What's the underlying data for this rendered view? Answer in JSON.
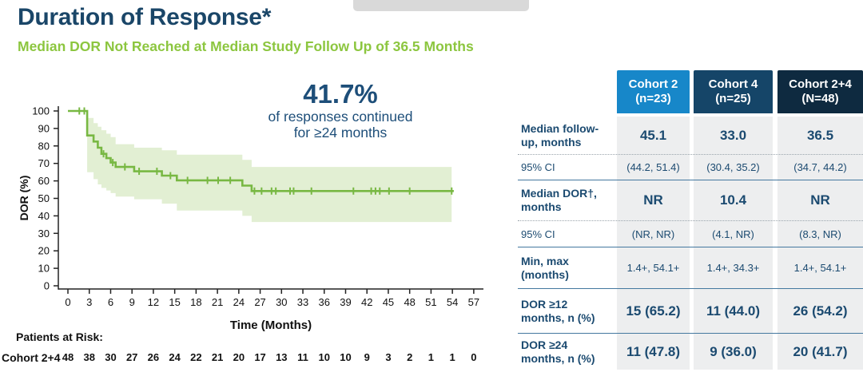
{
  "header": {
    "title": "Duration of Response*",
    "subtitle": "Median DOR Not Reached at Median Study Follow Up of 36.5 Months"
  },
  "colors": {
    "navy_text": "#1b4a70",
    "title_navy": "#1a4668",
    "green_accent": "#8cc63f",
    "curve_green": "#78b843",
    "band_green": "#e2efd3",
    "header_col1_bg": "#1787c9",
    "header_col2_bg": "#154568",
    "header_col3_bg": "#0e2a40",
    "cell_bg": "#edeeef",
    "logo_placeholder_gray": "#d9d9d9"
  },
  "chart_data": {
    "type": "line",
    "subtype": "kaplan-meier-step-curve",
    "annotation": {
      "value": "41.7%",
      "line1": "of responses continued",
      "line2": "for ≥24 months"
    },
    "xlabel": "Time (Months)",
    "ylabel": "DOR (%)",
    "xlim": [
      0,
      57
    ],
    "ylim": [
      0,
      100
    ],
    "xticks": [
      0,
      3,
      6,
      9,
      12,
      15,
      18,
      21,
      24,
      27,
      30,
      33,
      36,
      39,
      42,
      45,
      48,
      51,
      54,
      57
    ],
    "yticks": [
      0,
      10,
      20,
      30,
      40,
      50,
      60,
      70,
      80,
      90,
      100
    ],
    "series_name": "Cohort 2+4",
    "km_steps": [
      [
        0,
        100
      ],
      [
        2.7,
        86
      ],
      [
        3.6,
        82.5
      ],
      [
        4.2,
        79
      ],
      [
        4.7,
        75.5
      ],
      [
        5.4,
        73
      ],
      [
        6.0,
        70.5
      ],
      [
        6.7,
        68
      ],
      [
        9.3,
        65.5
      ],
      [
        13.2,
        63
      ],
      [
        15.3,
        60.3
      ],
      [
        24.5,
        57.3
      ],
      [
        25.8,
        54.2
      ]
    ],
    "curve_end_month": 54.2,
    "censor_marks": [
      [
        1.6,
        100
      ],
      [
        2.3,
        100
      ],
      [
        5.0,
        75.5
      ],
      [
        6.3,
        70.5
      ],
      [
        8.0,
        68
      ],
      [
        10.0,
        65.5
      ],
      [
        12.5,
        65.5
      ],
      [
        14.4,
        63
      ],
      [
        16.8,
        60.3
      ],
      [
        19.6,
        60.3
      ],
      [
        21.1,
        60.3
      ],
      [
        22.8,
        60.3
      ],
      [
        26.2,
        54.2
      ],
      [
        27.2,
        54.2
      ],
      [
        28.6,
        54.2
      ],
      [
        29.2,
        54.2
      ],
      [
        31.2,
        54.2
      ],
      [
        31.7,
        54.2
      ],
      [
        34.2,
        54.2
      ],
      [
        40.1,
        54.2
      ],
      [
        42.6,
        54.2
      ],
      [
        43.2,
        54.2
      ],
      [
        43.8,
        54.2
      ],
      [
        45.1,
        54.2
      ],
      [
        48.0,
        54.2
      ],
      [
        53.9,
        54.2
      ]
    ],
    "confidence_band": [
      [
        2.7,
        96,
        65
      ],
      [
        3.6,
        93,
        61
      ],
      [
        4.2,
        91,
        58
      ],
      [
        4.7,
        89,
        56
      ],
      [
        5.4,
        87,
        54.5
      ],
      [
        6.0,
        85,
        53
      ],
      [
        6.7,
        81,
        51
      ],
      [
        9.3,
        79,
        49.5
      ],
      [
        13.2,
        77.5,
        47
      ],
      [
        15.3,
        75,
        43
      ],
      [
        24.5,
        72,
        40
      ],
      [
        25.8,
        68,
        36.5
      ]
    ],
    "band_end_month": 53.9,
    "risk_table": {
      "heading": "Patients at Risk:",
      "group": "Cohort 2+4",
      "times": [
        0,
        3,
        6,
        9,
        12,
        15,
        18,
        21,
        24,
        27,
        30,
        33,
        36,
        39,
        42,
        45,
        48,
        51,
        54,
        57
      ],
      "counts": [
        48,
        38,
        30,
        27,
        26,
        24,
        22,
        21,
        20,
        17,
        13,
        11,
        10,
        10,
        9,
        3,
        2,
        1,
        1,
        0
      ]
    }
  },
  "table": {
    "columns": [
      {
        "title": "Cohort 2",
        "subtitle": "(n=23)",
        "bg": "#1787c9"
      },
      {
        "title": "Cohort 4",
        "subtitle": "(n=25)",
        "bg": "#154568"
      },
      {
        "title": "Cohort 2+4",
        "subtitle": "(N=48)",
        "bg": "#0e2a40"
      }
    ],
    "rows": [
      {
        "label": "Median follow-\nup, months",
        "style": "main",
        "values_style": "main",
        "values": [
          "45.1",
          "33.0",
          "36.5"
        ],
        "sep": "dotted"
      },
      {
        "label": "95% CI",
        "style": "sub",
        "values_style": "sub",
        "values": [
          "(44.2, 51.4)",
          "(30.4, 35.2)",
          "(34.7, 44.2)"
        ],
        "sep": "solid"
      },
      {
        "label": "Median DOR†,\nmonths",
        "style": "main",
        "values_style": "main",
        "values": [
          "NR",
          "10.4",
          "NR"
        ],
        "sep": "dotted"
      },
      {
        "label": "95% CI",
        "style": "sub",
        "values_style": "sub",
        "values": [
          "(NR, NR)",
          "(4.1, NR)",
          "(8.3, NR)"
        ],
        "sep": "solid"
      },
      {
        "label": "Min, max\n(months)",
        "style": "main",
        "values_style": "sub",
        "values": [
          "1.4+, 54.1+",
          "1.4+, 34.3+",
          "1.4+, 54.1+"
        ],
        "sep": "solid"
      },
      {
        "label": "DOR ≥12\nmonths, n (%)",
        "style": "main",
        "values_style": "main",
        "values": [
          "15 (65.2)",
          "11 (44.0)",
          "26 (54.2)"
        ],
        "sep": "solid"
      },
      {
        "label": "DOR ≥24\nmonths, n (%)",
        "style": "main",
        "values_style": "main",
        "values": [
          "11 (47.8)",
          "9 (36.0)",
          "20 (41.7)"
        ],
        "sep": "none"
      }
    ]
  }
}
